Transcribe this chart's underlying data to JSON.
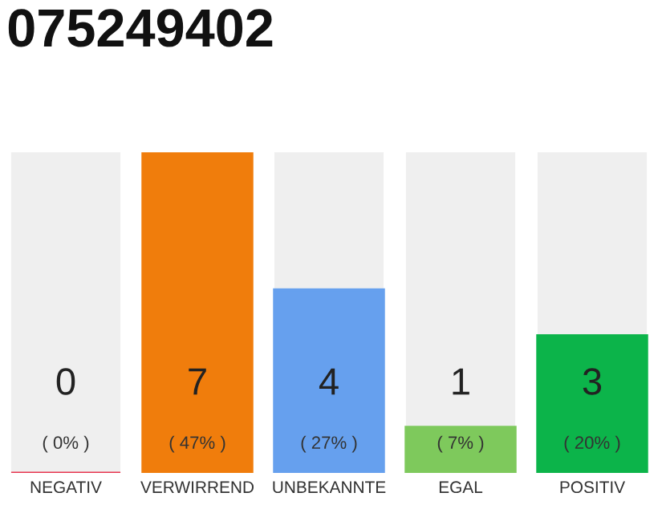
{
  "chart_data": {
    "type": "bar",
    "title": "075249402",
    "categories": [
      "NEGATIV",
      "VERWIRREND",
      "UNBEKANNTE",
      "EGAL",
      "POSITIV"
    ],
    "values": [
      0,
      7,
      4,
      1,
      3
    ],
    "colors": [
      "#e8344e",
      "#f07d0c",
      "#66a0ee",
      "#7ec95c",
      "#0cb44a"
    ],
    "ylim": [
      0,
      7
    ],
    "data_labels": true,
    "tick_labels": "x",
    "grid": false,
    "legend": false,
    "annotations": [
      "( 0% )",
      "( 47% )",
      "( 27% )",
      "( 7% )",
      "( 20% )"
    ]
  }
}
